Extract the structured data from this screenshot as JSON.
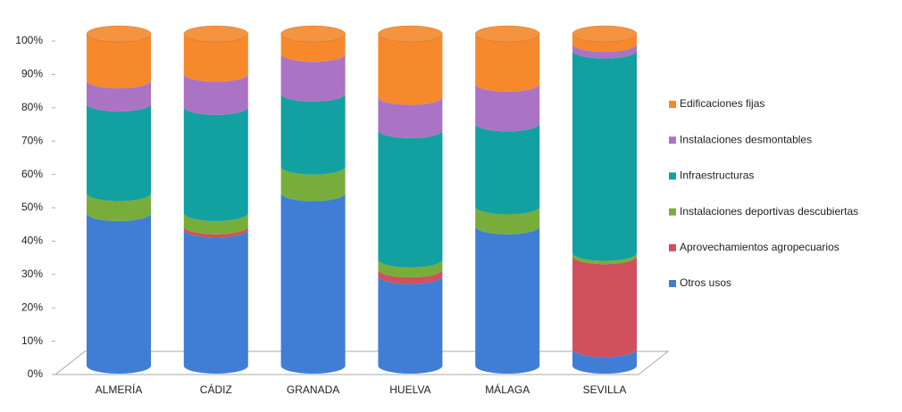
{
  "chart_data": {
    "type": "stacked-cylinder",
    "categories": [
      "ALMERÍA",
      "CÁDIZ",
      "GRANADA",
      "HUELVA",
      "MÁLAGA",
      "SEVILLA"
    ],
    "series": [
      {
        "name": "Otros usos",
        "color": "#3f7ed4",
        "values": [
          46,
          41,
          52,
          27,
          42,
          5
        ]
      },
      {
        "name": "Aprovechamientos agropecuarios",
        "color": "#d0505e",
        "values": [
          0,
          1,
          0,
          2,
          0,
          28
        ]
      },
      {
        "name": "Instalaciones deportivas descubiertas",
        "color": "#78ad3c",
        "values": [
          6,
          4,
          8,
          3,
          6,
          1
        ]
      },
      {
        "name": "Infraestructuras",
        "color": "#12a0a0",
        "values": [
          27,
          32,
          22,
          39,
          25,
          61
        ]
      },
      {
        "name": "Instalaciones desmontables",
        "color": "#ab73c4",
        "values": [
          7,
          10,
          12,
          10,
          12,
          2
        ]
      },
      {
        "name": "Edificaciones fijas",
        "color": "#f5892c",
        "values": [
          14,
          12,
          6,
          19,
          15,
          3
        ]
      }
    ],
    "ylim": [
      0,
      100
    ],
    "yticks": [
      {
        "value": 0,
        "label": "0%"
      },
      {
        "value": 10,
        "label": "10%"
      },
      {
        "value": 20,
        "label": "20%"
      },
      {
        "value": 30,
        "label": "30%"
      },
      {
        "value": 40,
        "label": "40%"
      },
      {
        "value": 50,
        "label": "50%"
      },
      {
        "value": 60,
        "label": "60%"
      },
      {
        "value": 70,
        "label": "70%"
      },
      {
        "value": 80,
        "label": "80%"
      },
      {
        "value": 90,
        "label": "90%"
      },
      {
        "value": 100,
        "label": "100%"
      }
    ],
    "legend": "right"
  }
}
